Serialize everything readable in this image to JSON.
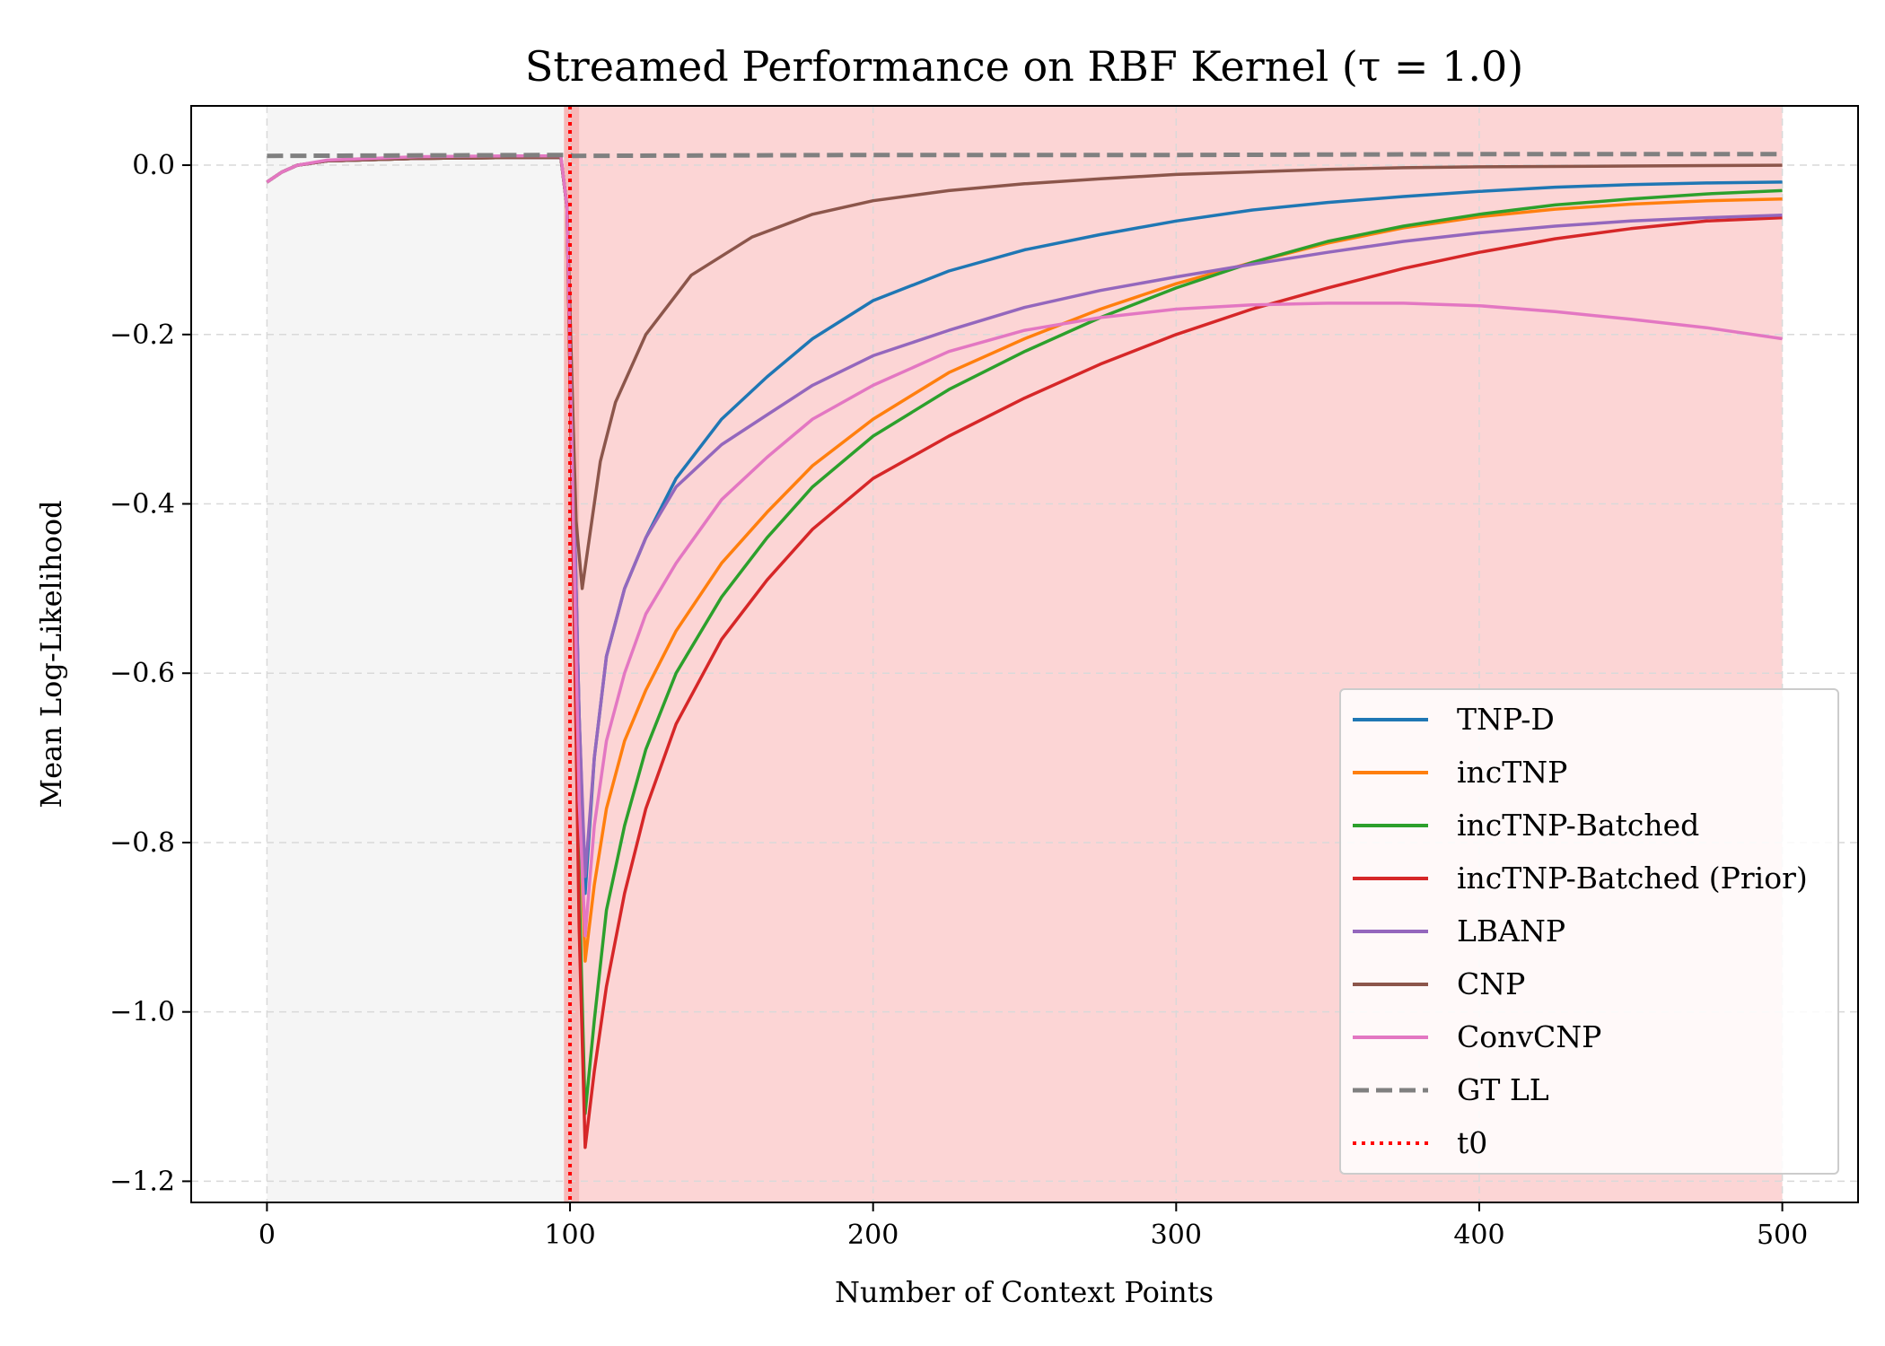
{
  "chart_data": {
    "type": "line",
    "title": "Streamed Performance on RBF Kernel (τ = 1.0)",
    "xlabel": "Number of Context Points",
    "ylabel": "Mean Log-Likelihood",
    "xlim": [
      -25,
      525
    ],
    "ylim": [
      -1.225,
      0.07
    ],
    "x_ticks": [
      0,
      100,
      200,
      300,
      400,
      500
    ],
    "y_ticks": [
      0.0,
      -0.2,
      -0.4,
      -0.6,
      -0.8,
      -1.0,
      -1.2
    ],
    "x_tick_labels": [
      "0",
      "100",
      "200",
      "300",
      "400",
      "500"
    ],
    "y_tick_labels": [
      "0.0",
      "−0.2",
      "−0.4",
      "−0.6",
      "−0.8",
      "−1.0",
      "−1.2"
    ],
    "grid": true,
    "legend_position": "lower-right",
    "shaded_regions": [
      {
        "x_start": 0,
        "x_end": 100,
        "color": "#f5f5f5"
      },
      {
        "x_start": 100,
        "x_end": 500,
        "color": "#fcd5d5"
      },
      {
        "x_start": 98,
        "x_end": 103,
        "color": "#f7b8b8"
      }
    ],
    "vertical_markers": [
      {
        "name": "t0",
        "x": 100,
        "color": "#ff0000",
        "style": "dotted"
      }
    ],
    "series": [
      {
        "name": "TNP-D",
        "color": "#1f77b4",
        "style": "solid",
        "points": [
          [
            0,
            -0.02
          ],
          [
            5,
            -0.008
          ],
          [
            10,
            0.0
          ],
          [
            20,
            0.005
          ],
          [
            50,
            0.008
          ],
          [
            80,
            0.009
          ],
          [
            97,
            0.009
          ],
          [
            99,
            -0.05
          ],
          [
            101,
            -0.35
          ],
          [
            103,
            -0.65
          ],
          [
            105,
            -0.86
          ],
          [
            108,
            -0.7
          ],
          [
            112,
            -0.58
          ],
          [
            118,
            -0.5
          ],
          [
            125,
            -0.44
          ],
          [
            135,
            -0.37
          ],
          [
            150,
            -0.3
          ],
          [
            165,
            -0.25
          ],
          [
            180,
            -0.205
          ],
          [
            200,
            -0.16
          ],
          [
            225,
            -0.125
          ],
          [
            250,
            -0.1
          ],
          [
            275,
            -0.082
          ],
          [
            300,
            -0.066
          ],
          [
            325,
            -0.053
          ],
          [
            350,
            -0.044
          ],
          [
            375,
            -0.037
          ],
          [
            400,
            -0.031
          ],
          [
            425,
            -0.026
          ],
          [
            450,
            -0.023
          ],
          [
            475,
            -0.021
          ],
          [
            500,
            -0.02
          ]
        ]
      },
      {
        "name": "incTNP",
        "color": "#ff7f0e",
        "style": "solid",
        "points": [
          [
            0,
            -0.02
          ],
          [
            5,
            -0.008
          ],
          [
            10,
            0.0
          ],
          [
            20,
            0.005
          ],
          [
            50,
            0.008
          ],
          [
            80,
            0.009
          ],
          [
            97,
            0.009
          ],
          [
            99,
            -0.05
          ],
          [
            101,
            -0.4
          ],
          [
            103,
            -0.75
          ],
          [
            105,
            -0.94
          ],
          [
            108,
            -0.85
          ],
          [
            112,
            -0.76
          ],
          [
            118,
            -0.68
          ],
          [
            125,
            -0.62
          ],
          [
            135,
            -0.55
          ],
          [
            150,
            -0.47
          ],
          [
            165,
            -0.41
          ],
          [
            180,
            -0.355
          ],
          [
            200,
            -0.3
          ],
          [
            225,
            -0.245
          ],
          [
            250,
            -0.205
          ],
          [
            275,
            -0.17
          ],
          [
            300,
            -0.14
          ],
          [
            325,
            -0.115
          ],
          [
            350,
            -0.092
          ],
          [
            375,
            -0.074
          ],
          [
            400,
            -0.061
          ],
          [
            425,
            -0.052
          ],
          [
            450,
            -0.046
          ],
          [
            475,
            -0.042
          ],
          [
            500,
            -0.04
          ]
        ]
      },
      {
        "name": "incTNP-Batched",
        "color": "#2ca02c",
        "style": "solid",
        "points": [
          [
            0,
            -0.02
          ],
          [
            5,
            -0.008
          ],
          [
            10,
            0.0
          ],
          [
            20,
            0.005
          ],
          [
            50,
            0.008
          ],
          [
            80,
            0.009
          ],
          [
            97,
            0.009
          ],
          [
            99,
            -0.05
          ],
          [
            101,
            -0.45
          ],
          [
            103,
            -0.85
          ],
          [
            105,
            -1.12
          ],
          [
            108,
            -1.01
          ],
          [
            112,
            -0.88
          ],
          [
            118,
            -0.78
          ],
          [
            125,
            -0.69
          ],
          [
            135,
            -0.6
          ],
          [
            150,
            -0.51
          ],
          [
            165,
            -0.44
          ],
          [
            180,
            -0.38
          ],
          [
            200,
            -0.32
          ],
          [
            225,
            -0.265
          ],
          [
            250,
            -0.22
          ],
          [
            275,
            -0.18
          ],
          [
            300,
            -0.145
          ],
          [
            325,
            -0.115
          ],
          [
            350,
            -0.09
          ],
          [
            375,
            -0.072
          ],
          [
            400,
            -0.058
          ],
          [
            425,
            -0.047
          ],
          [
            450,
            -0.04
          ],
          [
            475,
            -0.034
          ],
          [
            500,
            -0.03
          ]
        ]
      },
      {
        "name": "incTNP-Batched (Prior)",
        "color": "#d62728",
        "style": "solid",
        "points": [
          [
            0,
            -0.02
          ],
          [
            5,
            -0.008
          ],
          [
            10,
            0.0
          ],
          [
            20,
            0.005
          ],
          [
            50,
            0.008
          ],
          [
            80,
            0.009
          ],
          [
            97,
            0.009
          ],
          [
            99,
            -0.05
          ],
          [
            101,
            -0.45
          ],
          [
            103,
            -0.9
          ],
          [
            105,
            -1.16
          ],
          [
            108,
            -1.07
          ],
          [
            112,
            -0.97
          ],
          [
            118,
            -0.86
          ],
          [
            125,
            -0.76
          ],
          [
            135,
            -0.66
          ],
          [
            150,
            -0.56
          ],
          [
            165,
            -0.49
          ],
          [
            180,
            -0.43
          ],
          [
            200,
            -0.37
          ],
          [
            225,
            -0.32
          ],
          [
            250,
            -0.275
          ],
          [
            275,
            -0.235
          ],
          [
            300,
            -0.2
          ],
          [
            325,
            -0.17
          ],
          [
            350,
            -0.145
          ],
          [
            375,
            -0.122
          ],
          [
            400,
            -0.103
          ],
          [
            425,
            -0.087
          ],
          [
            450,
            -0.075
          ],
          [
            475,
            -0.066
          ],
          [
            500,
            -0.062
          ]
        ]
      },
      {
        "name": "LBANP",
        "color": "#9467bd",
        "style": "solid",
        "points": [
          [
            0,
            -0.02
          ],
          [
            5,
            -0.008
          ],
          [
            10,
            0.0
          ],
          [
            20,
            0.005
          ],
          [
            50,
            0.008
          ],
          [
            80,
            0.009
          ],
          [
            97,
            0.009
          ],
          [
            99,
            -0.05
          ],
          [
            101,
            -0.35
          ],
          [
            103,
            -0.65
          ],
          [
            105,
            -0.84
          ],
          [
            108,
            -0.7
          ],
          [
            112,
            -0.58
          ],
          [
            118,
            -0.5
          ],
          [
            125,
            -0.44
          ],
          [
            135,
            -0.38
          ],
          [
            150,
            -0.33
          ],
          [
            165,
            -0.295
          ],
          [
            180,
            -0.26
          ],
          [
            200,
            -0.225
          ],
          [
            225,
            -0.195
          ],
          [
            250,
            -0.168
          ],
          [
            275,
            -0.148
          ],
          [
            300,
            -0.132
          ],
          [
            325,
            -0.117
          ],
          [
            350,
            -0.103
          ],
          [
            375,
            -0.09
          ],
          [
            400,
            -0.08
          ],
          [
            425,
            -0.072
          ],
          [
            450,
            -0.066
          ],
          [
            475,
            -0.062
          ],
          [
            500,
            -0.059
          ]
        ]
      },
      {
        "name": "CNP",
        "color": "#8c564b",
        "style": "solid",
        "points": [
          [
            0,
            -0.02
          ],
          [
            5,
            -0.008
          ],
          [
            10,
            0.0
          ],
          [
            20,
            0.005
          ],
          [
            50,
            0.008
          ],
          [
            80,
            0.009
          ],
          [
            97,
            0.009
          ],
          [
            99,
            -0.05
          ],
          [
            101,
            -0.3
          ],
          [
            102,
            -0.42
          ],
          [
            104,
            -0.5
          ],
          [
            106,
            -0.45
          ],
          [
            110,
            -0.35
          ],
          [
            115,
            -0.28
          ],
          [
            125,
            -0.2
          ],
          [
            140,
            -0.13
          ],
          [
            160,
            -0.085
          ],
          [
            180,
            -0.058
          ],
          [
            200,
            -0.042
          ],
          [
            225,
            -0.03
          ],
          [
            250,
            -0.022
          ],
          [
            275,
            -0.016
          ],
          [
            300,
            -0.011
          ],
          [
            325,
            -0.008
          ],
          [
            350,
            -0.005
          ],
          [
            375,
            -0.003
          ],
          [
            400,
            -0.002
          ],
          [
            450,
            -0.001
          ],
          [
            500,
            0.0
          ]
        ]
      },
      {
        "name": "ConvCNP",
        "color": "#e377c2",
        "style": "solid",
        "points": [
          [
            0,
            -0.02
          ],
          [
            5,
            -0.008
          ],
          [
            10,
            0.0
          ],
          [
            20,
            0.006
          ],
          [
            50,
            0.01
          ],
          [
            80,
            0.011
          ],
          [
            97,
            0.011
          ],
          [
            99,
            -0.05
          ],
          [
            101,
            -0.4
          ],
          [
            103,
            -0.75
          ],
          [
            105,
            -0.91
          ],
          [
            108,
            -0.78
          ],
          [
            112,
            -0.68
          ],
          [
            118,
            -0.6
          ],
          [
            125,
            -0.53
          ],
          [
            135,
            -0.47
          ],
          [
            150,
            -0.395
          ],
          [
            165,
            -0.345
          ],
          [
            180,
            -0.3
          ],
          [
            200,
            -0.26
          ],
          [
            225,
            -0.22
          ],
          [
            250,
            -0.195
          ],
          [
            275,
            -0.18
          ],
          [
            300,
            -0.17
          ],
          [
            325,
            -0.165
          ],
          [
            350,
            -0.163
          ],
          [
            375,
            -0.163
          ],
          [
            400,
            -0.166
          ],
          [
            425,
            -0.173
          ],
          [
            450,
            -0.182
          ],
          [
            475,
            -0.192
          ],
          [
            500,
            -0.205
          ]
        ]
      },
      {
        "name": "GT LL",
        "color": "#808080",
        "style": "dashed",
        "points": [
          [
            0,
            0.011
          ],
          [
            100,
            0.012
          ],
          [
            101,
            0.011
          ],
          [
            200,
            0.012
          ],
          [
            300,
            0.012
          ],
          [
            400,
            0.013
          ],
          [
            500,
            0.013
          ]
        ]
      }
    ]
  }
}
